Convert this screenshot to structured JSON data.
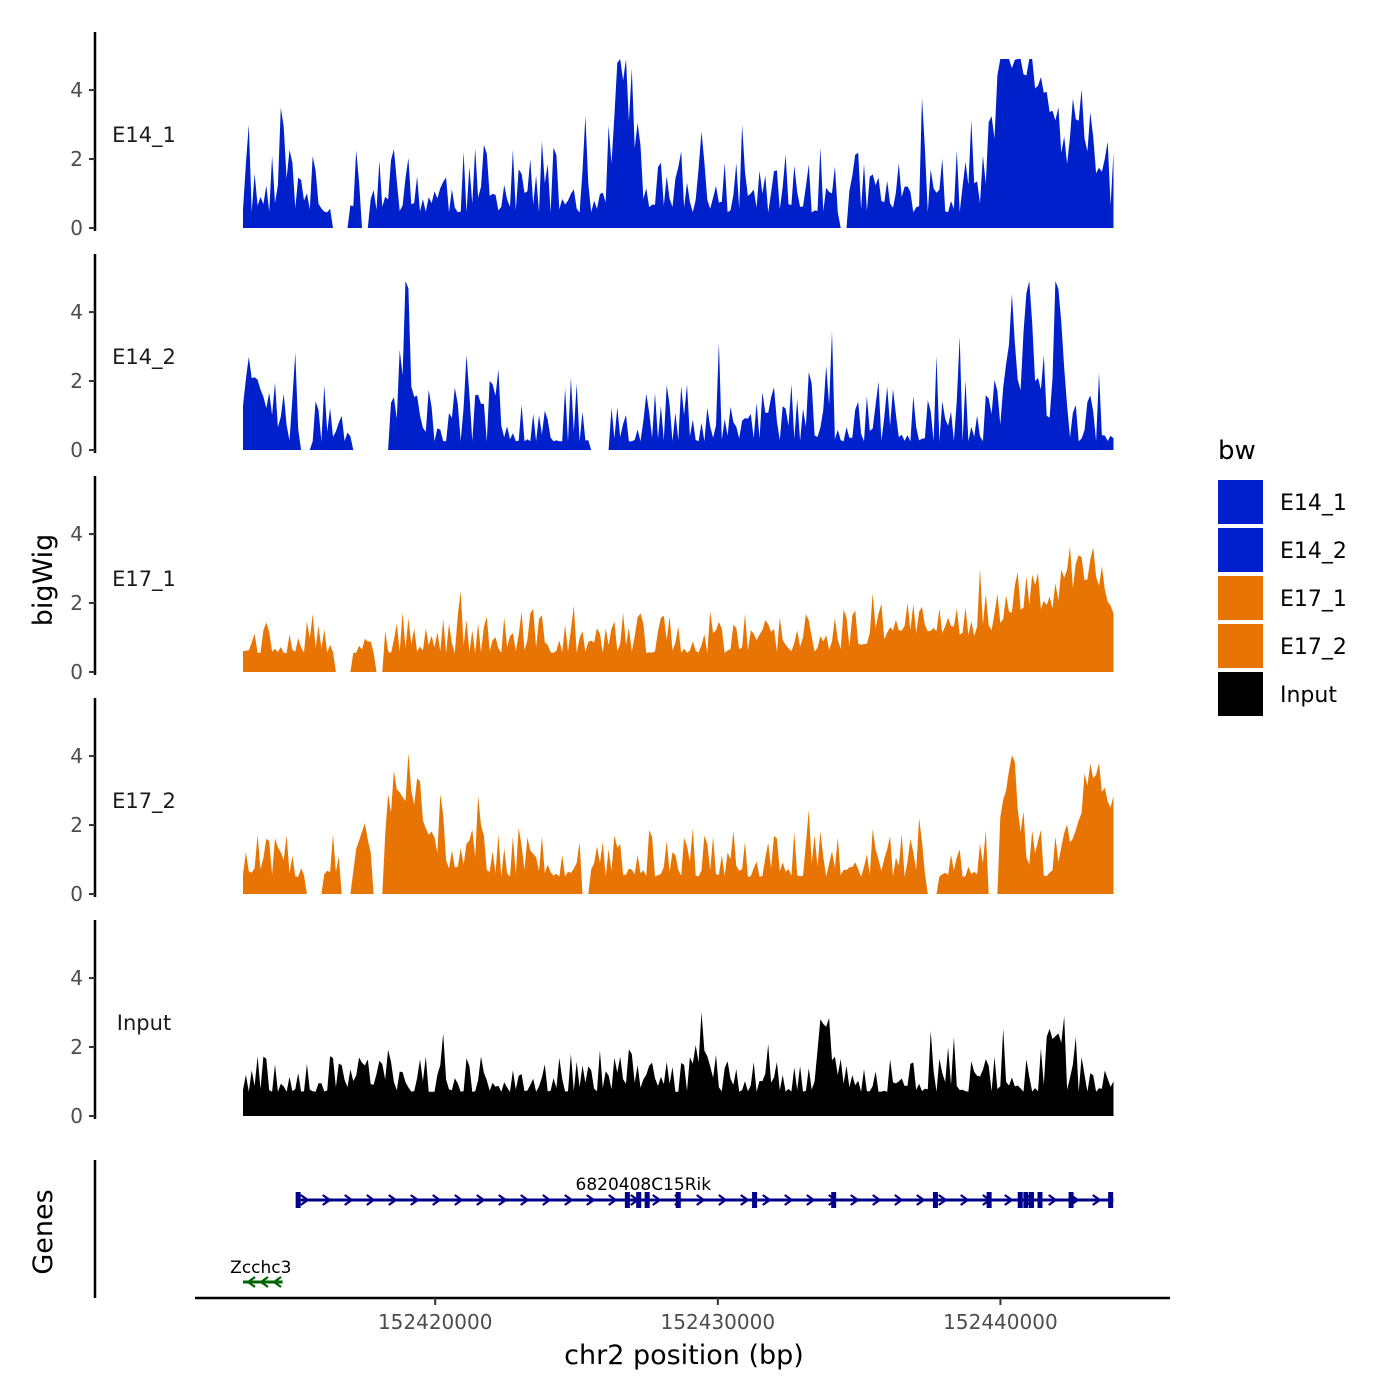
{
  "chart_data": {
    "type": "area",
    "xlabel": "chr2 position (bp)",
    "ylabel": "bigWig",
    "genes_label": "Genes",
    "xlim": [
      152411500,
      152446000
    ],
    "data_x_range": [
      152413200,
      152444000
    ],
    "x_ticks": [
      {
        "value": 152420000,
        "label": "152420000"
      },
      {
        "value": 152430000,
        "label": "152430000"
      },
      {
        "value": 152440000,
        "label": "152440000"
      }
    ],
    "ylim": [
      0,
      5.8
    ],
    "y_ticks": [
      {
        "value": 0,
        "label": "0"
      },
      {
        "value": 2,
        "label": "2"
      },
      {
        "value": 4,
        "label": "4"
      }
    ],
    "legend": {
      "title": "bw",
      "items": [
        {
          "label": "E14_1",
          "color": "#0020CC"
        },
        {
          "label": "E14_2",
          "color": "#0020CC"
        },
        {
          "label": "E17_1",
          "color": "#E87503"
        },
        {
          "label": "E17_2",
          "color": "#E87503"
        },
        {
          "label": "Input",
          "color": "#000000"
        }
      ]
    },
    "series": [
      {
        "name": "E14_1",
        "color": "#0020CC",
        "seed": 11,
        "base": 0.45,
        "noise": 1.9,
        "peaks": [
          [
            152414600,
            0.2,
            1.6
          ],
          [
            152426600,
            0.35,
            3.9
          ],
          [
            152440300,
            0.6,
            3.2
          ],
          [
            152441400,
            0.8,
            3.4
          ],
          [
            152443000,
            0.6,
            1.7
          ]
        ],
        "gaps": [
          [
            152416300,
            152416900
          ],
          [
            152417400,
            152417700
          ],
          [
            152434300,
            152434600
          ]
        ]
      },
      {
        "name": "E14_2",
        "color": "#0020CC",
        "seed": 23,
        "base": 0.25,
        "noise": 1.9,
        "peaks": [
          [
            152413600,
            0.5,
            1.8
          ],
          [
            152419000,
            0.15,
            4.6
          ],
          [
            152441000,
            0.2,
            4.6
          ],
          [
            152442000,
            0.15,
            4.9
          ],
          [
            152440400,
            0.2,
            3.4
          ]
        ],
        "gaps": [
          [
            152415200,
            152415600
          ],
          [
            152417000,
            152418400
          ],
          [
            152425500,
            152426200
          ]
        ]
      },
      {
        "name": "E17_1",
        "color": "#E87503",
        "seed": 37,
        "base": 0.55,
        "noise": 1.2,
        "peaks": [
          [
            152437500,
            2.5,
            0.6
          ],
          [
            152441000,
            1.2,
            1.2
          ],
          [
            152443000,
            1.0,
            2.0
          ]
        ],
        "gaps": [
          [
            152416400,
            152417000
          ],
          [
            152417900,
            152418200
          ]
        ]
      },
      {
        "name": "E17_2",
        "color": "#E87503",
        "seed": 51,
        "base": 0.5,
        "noise": 1.4,
        "peaks": [
          [
            152419000,
            1.0,
            2.2
          ],
          [
            152440300,
            0.5,
            2.4
          ],
          [
            152443400,
            0.8,
            2.6
          ]
        ],
        "gaps": [
          [
            152415400,
            152416000
          ],
          [
            152416600,
            152417100
          ],
          [
            152417800,
            152418200
          ],
          [
            152425200,
            152425500
          ],
          [
            152437400,
            152437800
          ],
          [
            152439500,
            152439900
          ]
        ]
      },
      {
        "name": "Input",
        "color": "#000000",
        "seed": 67,
        "base": 0.7,
        "noise": 1.1,
        "peaks": [
          [
            152433800,
            0.25,
            1.9
          ],
          [
            152441900,
            0.25,
            1.6
          ],
          [
            152429500,
            0.3,
            1.2
          ]
        ],
        "gaps": []
      }
    ],
    "genes": [
      {
        "name": "6820408C15Rik",
        "start": 152415100,
        "end": 152444000,
        "strand": "+",
        "color": "#00008B",
        "row": 0,
        "exons": [
          152415150,
          152426800,
          152427200,
          152427500,
          152428600,
          152431300,
          152434100,
          152437700,
          152439600,
          152440700,
          152440900,
          152441100,
          152441400,
          152442500,
          152443900
        ]
      },
      {
        "name": "Zcchc3",
        "start": 152413200,
        "end": 152414600,
        "strand": "-",
        "color": "#006400",
        "row": 1,
        "exons": []
      }
    ]
  }
}
